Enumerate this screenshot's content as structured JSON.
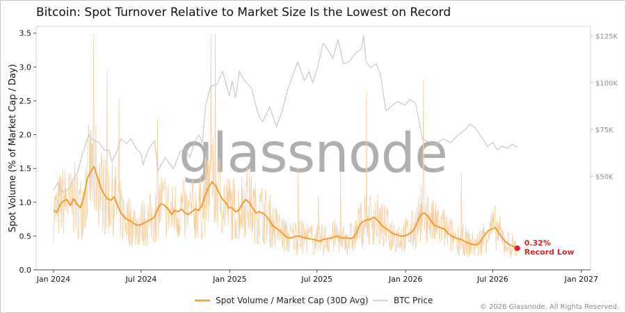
{
  "title": "Bitcoin: Spot Turnover Relative to Market Size Is the Lowest on Record",
  "footer": "© 2026 Glassnode. All Rights Reserved.",
  "watermark": "glassnode",
  "colors": {
    "primary": "#f29a2e",
    "primary_raw": "#f6cf9f",
    "secondary": "#c4c4c4",
    "marker": "#d9262a"
  },
  "chart_data": {
    "type": "line",
    "ylabel": "Spot Volume (% of Market Cap / Day)",
    "ylim": [
      0,
      3.6
    ],
    "yticks": [
      "0.0",
      "0.5",
      "1.0",
      "1.5",
      "2.0",
      "2.5",
      "3.0",
      "3.5"
    ],
    "y2lim": [
      0,
      130000
    ],
    "y2ticks": [
      {
        "value": 50000,
        "label": "$50K"
      },
      {
        "value": 75000,
        "label": "$75K"
      },
      {
        "value": 100000,
        "label": "$100K"
      },
      {
        "value": 125000,
        "label": "$125K"
      }
    ],
    "xlim": [
      "2023-11-26",
      "2027-01-20"
    ],
    "xticks": [
      {
        "date": "2024-01-01",
        "label": "Jan 2024"
      },
      {
        "date": "2024-07-01",
        "label": "Jul 2024"
      },
      {
        "date": "2025-01-01",
        "label": "Jan 2025"
      },
      {
        "date": "2025-07-01",
        "label": "Jul 2025"
      },
      {
        "date": "2026-01-01",
        "label": "Jan 2026"
      },
      {
        "date": "2026-07-01",
        "label": "Jul 2026"
      },
      {
        "date": "2027-01-01",
        "label": "Jan 2027"
      }
    ],
    "series": [
      {
        "name": "Spot Volume / Market Cap (30D Avg)",
        "axis": "left",
        "points": [
          [
            "2024-01-01",
            0.88
          ],
          [
            "2024-01-08",
            0.85
          ],
          [
            "2024-01-15",
            0.97
          ],
          [
            "2024-01-22",
            1.02
          ],
          [
            "2024-01-29",
            1.04
          ],
          [
            "2024-02-05",
            0.95
          ],
          [
            "2024-02-12",
            1.05
          ],
          [
            "2024-02-19",
            0.97
          ],
          [
            "2024-02-26",
            0.92
          ],
          [
            "2024-03-04",
            1.08
          ],
          [
            "2024-03-11",
            1.35
          ],
          [
            "2024-03-18",
            1.45
          ],
          [
            "2024-03-25",
            1.53
          ],
          [
            "2024-04-01",
            1.38
          ],
          [
            "2024-04-08",
            1.22
          ],
          [
            "2024-04-15",
            1.12
          ],
          [
            "2024-04-22",
            1.05
          ],
          [
            "2024-04-29",
            1.03
          ],
          [
            "2024-05-06",
            1.08
          ],
          [
            "2024-05-13",
            0.95
          ],
          [
            "2024-05-20",
            0.84
          ],
          [
            "2024-05-27",
            0.78
          ],
          [
            "2024-06-03",
            0.74
          ],
          [
            "2024-06-10",
            0.72
          ],
          [
            "2024-06-17",
            0.68
          ],
          [
            "2024-06-24",
            0.66
          ],
          [
            "2024-07-01",
            0.67
          ],
          [
            "2024-07-08",
            0.7
          ],
          [
            "2024-07-15",
            0.72
          ],
          [
            "2024-07-22",
            0.75
          ],
          [
            "2024-07-29",
            0.78
          ],
          [
            "2024-08-05",
            0.92
          ],
          [
            "2024-08-12",
            0.98
          ],
          [
            "2024-08-19",
            0.95
          ],
          [
            "2024-08-26",
            0.9
          ],
          [
            "2024-09-02",
            0.82
          ],
          [
            "2024-09-09",
            0.88
          ],
          [
            "2024-09-16",
            0.86
          ],
          [
            "2024-09-23",
            0.9
          ],
          [
            "2024-09-30",
            0.84
          ],
          [
            "2024-10-07",
            0.82
          ],
          [
            "2024-10-14",
            0.86
          ],
          [
            "2024-10-21",
            0.9
          ],
          [
            "2024-10-28",
            0.88
          ],
          [
            "2024-11-04",
            0.95
          ],
          [
            "2024-11-11",
            1.1
          ],
          [
            "2024-11-18",
            1.22
          ],
          [
            "2024-11-25",
            1.3
          ],
          [
            "2024-12-02",
            1.25
          ],
          [
            "2024-12-09",
            1.15
          ],
          [
            "2024-12-16",
            1.05
          ],
          [
            "2024-12-23",
            1.0
          ],
          [
            "2024-12-30",
            0.92
          ],
          [
            "2025-01-06",
            0.92
          ],
          [
            "2025-01-13",
            0.86
          ],
          [
            "2025-01-20",
            0.88
          ],
          [
            "2025-01-27",
            0.98
          ],
          [
            "2025-02-03",
            1.04
          ],
          [
            "2025-02-10",
            1.0
          ],
          [
            "2025-02-17",
            0.92
          ],
          [
            "2025-02-24",
            0.84
          ],
          [
            "2025-03-03",
            0.86
          ],
          [
            "2025-03-10",
            0.84
          ],
          [
            "2025-03-17",
            0.8
          ],
          [
            "2025-03-24",
            0.74
          ],
          [
            "2025-03-31",
            0.65
          ],
          [
            "2025-04-07",
            0.62
          ],
          [
            "2025-04-14",
            0.58
          ],
          [
            "2025-04-21",
            0.54
          ],
          [
            "2025-04-28",
            0.49
          ],
          [
            "2025-05-05",
            0.47
          ],
          [
            "2025-05-12",
            0.48
          ],
          [
            "2025-05-19",
            0.5
          ],
          [
            "2025-05-26",
            0.5
          ],
          [
            "2025-06-02",
            0.48
          ],
          [
            "2025-06-09",
            0.47
          ],
          [
            "2025-06-16",
            0.46
          ],
          [
            "2025-06-23",
            0.45
          ],
          [
            "2025-06-30",
            0.44
          ],
          [
            "2025-07-07",
            0.42
          ],
          [
            "2025-07-14",
            0.45
          ],
          [
            "2025-07-21",
            0.46
          ],
          [
            "2025-07-28",
            0.47
          ],
          [
            "2025-08-04",
            0.48
          ],
          [
            "2025-08-11",
            0.5
          ],
          [
            "2025-08-18",
            0.48
          ],
          [
            "2025-08-25",
            0.47
          ],
          [
            "2025-09-01",
            0.48
          ],
          [
            "2025-09-08",
            0.46
          ],
          [
            "2025-09-15",
            0.48
          ],
          [
            "2025-09-22",
            0.56
          ],
          [
            "2025-09-29",
            0.68
          ],
          [
            "2025-10-06",
            0.72
          ],
          [
            "2025-10-13",
            0.74
          ],
          [
            "2025-10-20",
            0.75
          ],
          [
            "2025-10-27",
            0.78
          ],
          [
            "2025-11-03",
            0.74
          ],
          [
            "2025-11-10",
            0.68
          ],
          [
            "2025-11-17",
            0.63
          ],
          [
            "2025-11-24",
            0.6
          ],
          [
            "2025-12-01",
            0.56
          ],
          [
            "2025-12-08",
            0.53
          ],
          [
            "2025-12-15",
            0.52
          ],
          [
            "2025-12-22",
            0.5
          ],
          [
            "2025-12-29",
            0.5
          ],
          [
            "2026-01-05",
            0.52
          ],
          [
            "2026-01-12",
            0.55
          ],
          [
            "2026-01-19",
            0.6
          ],
          [
            "2026-01-26",
            0.72
          ],
          [
            "2026-02-02",
            0.82
          ],
          [
            "2026-02-09",
            0.84
          ],
          [
            "2026-02-16",
            0.8
          ],
          [
            "2026-02-23",
            0.72
          ],
          [
            "2026-03-02",
            0.66
          ],
          [
            "2026-03-09",
            0.64
          ],
          [
            "2026-03-16",
            0.62
          ],
          [
            "2026-03-23",
            0.6
          ],
          [
            "2026-03-30",
            0.54
          ],
          [
            "2026-04-06",
            0.5
          ],
          [
            "2026-04-13",
            0.48
          ],
          [
            "2026-04-20",
            0.46
          ],
          [
            "2026-04-27",
            0.45
          ],
          [
            "2026-05-04",
            0.42
          ],
          [
            "2026-05-11",
            0.4
          ],
          [
            "2026-05-18",
            0.38
          ],
          [
            "2026-05-25",
            0.37
          ],
          [
            "2026-06-01",
            0.38
          ],
          [
            "2026-06-08",
            0.45
          ],
          [
            "2026-06-15",
            0.52
          ],
          [
            "2026-06-22",
            0.58
          ],
          [
            "2026-06-29",
            0.6
          ],
          [
            "2026-07-06",
            0.63
          ],
          [
            "2026-07-13",
            0.55
          ],
          [
            "2026-07-20",
            0.48
          ],
          [
            "2026-07-27",
            0.42
          ],
          [
            "2026-08-03",
            0.38
          ],
          [
            "2026-08-10",
            0.36
          ],
          [
            "2026-08-17",
            0.33
          ],
          [
            "2026-08-21",
            0.32
          ]
        ]
      },
      {
        "name": "BTC Price",
        "axis": "right",
        "points": [
          [
            "2024-01-01",
            42500
          ],
          [
            "2024-01-10",
            46500
          ],
          [
            "2024-01-20",
            41500
          ],
          [
            "2024-02-01",
            43000
          ],
          [
            "2024-02-10",
            47500
          ],
          [
            "2024-02-20",
            52000
          ],
          [
            "2024-03-01",
            62000
          ],
          [
            "2024-03-14",
            72000
          ],
          [
            "2024-03-25",
            69000
          ],
          [
            "2024-04-05",
            68000
          ],
          [
            "2024-04-15",
            64000
          ],
          [
            "2024-04-25",
            64000
          ],
          [
            "2024-05-01",
            58000
          ],
          [
            "2024-05-10",
            62000
          ],
          [
            "2024-05-20",
            70000
          ],
          [
            "2024-06-01",
            67500
          ],
          [
            "2024-06-10",
            70000
          ],
          [
            "2024-06-20",
            65000
          ],
          [
            "2024-07-01",
            62000
          ],
          [
            "2024-07-05",
            56000
          ],
          [
            "2024-07-15",
            64000
          ],
          [
            "2024-07-29",
            69000
          ],
          [
            "2024-08-05",
            53000
          ],
          [
            "2024-08-20",
            60000
          ],
          [
            "2024-09-06",
            54000
          ],
          [
            "2024-09-20",
            63000
          ],
          [
            "2024-09-30",
            65000
          ],
          [
            "2024-10-10",
            60000
          ],
          [
            "2024-10-21",
            69000
          ],
          [
            "2024-10-29",
            72000
          ],
          [
            "2024-11-05",
            68000
          ],
          [
            "2024-11-12",
            88000
          ],
          [
            "2024-11-22",
            98000
          ],
          [
            "2024-12-05",
            99000
          ],
          [
            "2024-12-17",
            106000
          ],
          [
            "2024-12-31",
            93000
          ],
          [
            "2025-01-06",
            101000
          ],
          [
            "2025-01-13",
            92000
          ],
          [
            "2025-01-21",
            106000
          ],
          [
            "2025-02-01",
            101000
          ],
          [
            "2025-02-15",
            97000
          ],
          [
            "2025-02-28",
            84000
          ],
          [
            "2025-03-10",
            79000
          ],
          [
            "2025-03-25",
            87000
          ],
          [
            "2025-04-08",
            76500
          ],
          [
            "2025-04-20",
            85000
          ],
          [
            "2025-05-01",
            96000
          ],
          [
            "2025-05-12",
            104000
          ],
          [
            "2025-05-22",
            111000
          ],
          [
            "2025-06-05",
            101000
          ],
          [
            "2025-06-15",
            106000
          ],
          [
            "2025-06-22",
            100000
          ],
          [
            "2025-07-01",
            107000
          ],
          [
            "2025-07-14",
            121000
          ],
          [
            "2025-07-25",
            117000
          ],
          [
            "2025-08-03",
            113000
          ],
          [
            "2025-08-14",
            123000
          ],
          [
            "2025-08-25",
            110000
          ],
          [
            "2025-09-05",
            111000
          ],
          [
            "2025-09-20",
            116000
          ],
          [
            "2025-10-01",
            118000
          ],
          [
            "2025-10-06",
            125000
          ],
          [
            "2025-10-11",
            111000
          ],
          [
            "2025-10-20",
            108000
          ],
          [
            "2025-11-01",
            110000
          ],
          [
            "2025-11-10",
            104000
          ],
          [
            "2025-11-21",
            85000
          ],
          [
            "2025-12-01",
            87000
          ],
          [
            "2025-12-15",
            90000
          ],
          [
            "2025-12-31",
            88000
          ],
          [
            "2026-01-10",
            91000
          ],
          [
            "2026-01-22",
            89000
          ],
          [
            "2026-02-05",
            70000
          ],
          [
            "2026-02-20",
            68000
          ],
          [
            "2026-03-05",
            67000
          ],
          [
            "2026-03-20",
            70000
          ],
          [
            "2026-04-05",
            68000
          ],
          [
            "2026-04-20",
            72000
          ],
          [
            "2026-05-05",
            75000
          ],
          [
            "2026-05-15",
            78000
          ],
          [
            "2026-05-25",
            76000
          ],
          [
            "2026-06-05",
            72000
          ],
          [
            "2026-06-20",
            66000
          ],
          [
            "2026-07-01",
            68000
          ],
          [
            "2026-07-10",
            64000
          ],
          [
            "2026-07-20",
            66000
          ],
          [
            "2026-08-01",
            65000
          ],
          [
            "2026-08-10",
            67000
          ],
          [
            "2026-08-21",
            65500
          ]
        ]
      }
    ],
    "raw_daily_band": {
      "note": "faint daily values shown behind the 30D average",
      "axis": "left"
    },
    "annotation": {
      "date": "2026-08-21",
      "value": 0.32,
      "value_label": "0.32%",
      "label": "Record Low"
    },
    "legend": {
      "position": "bottom-center"
    },
    "grid": false
  }
}
